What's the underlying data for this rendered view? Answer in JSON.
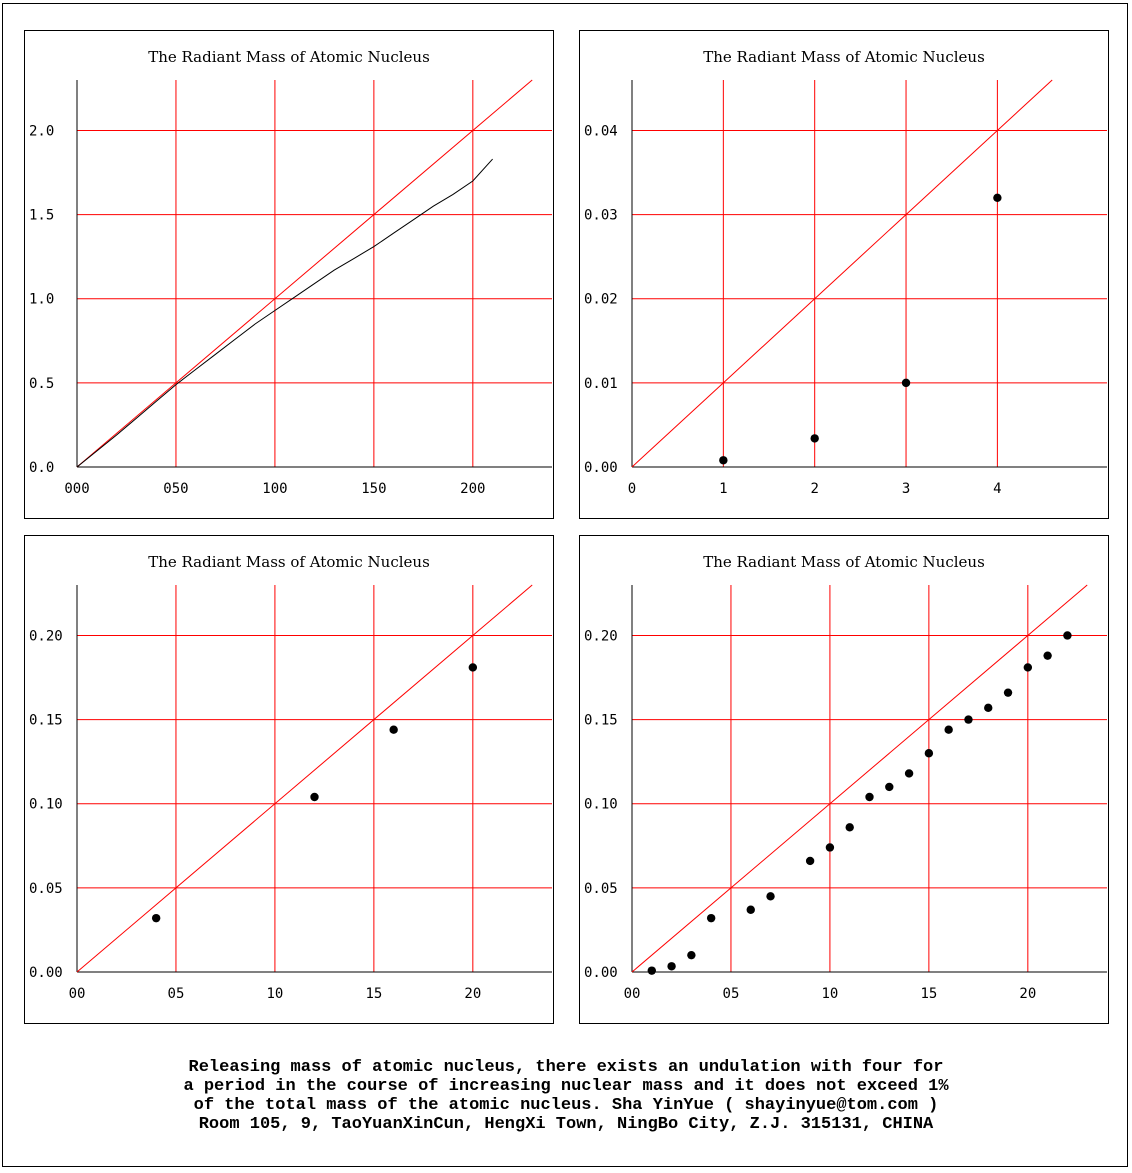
{
  "chart_data": [
    {
      "type": "scatter",
      "title": "The Radiant Mass of Atomic Nucleus",
      "xlim": [
        0,
        240
      ],
      "ylim": [
        0,
        2.3
      ],
      "xticks": [
        0,
        50,
        100,
        150,
        200
      ],
      "xtick_labels": [
        "000",
        "050",
        "100",
        "150",
        "200"
      ],
      "yticks": [
        0,
        0.5,
        1.0,
        1.5,
        2.0
      ],
      "ytick_labels": [
        "0.0",
        "0.5",
        "1.0",
        "1.5",
        "2.0"
      ],
      "grid": true,
      "reference_line": {
        "slope": 0.01
      },
      "series": [
        {
          "style": "curve",
          "x": [
            0,
            10,
            20,
            30,
            40,
            50,
            60,
            70,
            80,
            90,
            100,
            110,
            120,
            130,
            140,
            150,
            160,
            170,
            180,
            190,
            200,
            210
          ],
          "y": [
            0,
            0.095,
            0.19,
            0.29,
            0.39,
            0.49,
            0.58,
            0.67,
            0.76,
            0.85,
            0.93,
            1.01,
            1.09,
            1.17,
            1.24,
            1.31,
            1.39,
            1.47,
            1.55,
            1.62,
            1.7,
            1.83
          ]
        }
      ]
    },
    {
      "type": "scatter",
      "title": "The Radiant Mass of Atomic Nucleus",
      "xlim": [
        0,
        5.2
      ],
      "ylim": [
        0,
        0.046
      ],
      "xticks": [
        0,
        1,
        2,
        3,
        4
      ],
      "xtick_labels": [
        "0",
        "1",
        "2",
        "3",
        "4"
      ],
      "yticks": [
        0,
        0.01,
        0.02,
        0.03,
        0.04
      ],
      "ytick_labels": [
        "0.00",
        "0.01",
        "0.02",
        "0.03",
        "0.04"
      ],
      "grid": true,
      "reference_line": {
        "slope": 0.01
      },
      "series": [
        {
          "style": "points",
          "x": [
            1,
            2,
            3,
            4
          ],
          "y": [
            0.0008,
            0.0034,
            0.01,
            0.032
          ]
        }
      ]
    },
    {
      "type": "scatter",
      "title": "The Radiant Mass of Atomic Nucleus",
      "xlim": [
        0,
        24
      ],
      "ylim": [
        0,
        0.23
      ],
      "xticks": [
        0,
        5,
        10,
        15,
        20
      ],
      "xtick_labels": [
        "00",
        "05",
        "10",
        "15",
        "20"
      ],
      "yticks": [
        0,
        0.05,
        0.1,
        0.15,
        0.2
      ],
      "ytick_labels": [
        "0.00",
        "0.05",
        "0.10",
        "0.15",
        "0.20"
      ],
      "grid": true,
      "reference_line": {
        "slope": 0.01
      },
      "series": [
        {
          "style": "points",
          "x": [
            4,
            12,
            16,
            20
          ],
          "y": [
            0.032,
            0.104,
            0.144,
            0.181
          ]
        }
      ]
    },
    {
      "type": "scatter",
      "title": "The Radiant Mass of Atomic Nucleus",
      "xlim": [
        0,
        24
      ],
      "ylim": [
        0,
        0.23
      ],
      "xticks": [
        0,
        5,
        10,
        15,
        20
      ],
      "xtick_labels": [
        "00",
        "05",
        "10",
        "15",
        "20"
      ],
      "yticks": [
        0,
        0.05,
        0.1,
        0.15,
        0.2
      ],
      "ytick_labels": [
        "0.00",
        "0.05",
        "0.10",
        "0.15",
        "0.20"
      ],
      "grid": true,
      "reference_line": {
        "slope": 0.01
      },
      "series": [
        {
          "style": "points",
          "x": [
            1,
            2,
            3,
            4,
            6,
            7,
            9,
            10,
            11,
            12,
            13,
            14,
            15,
            16,
            17,
            18,
            19,
            20,
            21,
            22
          ],
          "y": [
            0.0008,
            0.0034,
            0.01,
            0.032,
            0.037,
            0.045,
            0.066,
            0.074,
            0.086,
            0.104,
            0.11,
            0.118,
            0.13,
            0.144,
            0.15,
            0.157,
            0.166,
            0.181,
            0.188,
            0.2
          ]
        }
      ]
    }
  ],
  "caption": {
    "line1": "Releasing mass of atomic nucleus, there exists an undulation with four for",
    "line2": "a period in the course of increasing nuclear mass and it does not exceed 1%",
    "line3": "of the total mass of the atomic nucleus. Sha YinYue ( shayinyue@tom.com )",
    "line4": "Room 105, 9, TaoYuanXinCun, HengXi Town, NingBo City, Z.J. 315131, CHINA"
  },
  "colors": {
    "grid": "#ff0000",
    "reference": "#ff0000",
    "data": "#000000",
    "border": "#000000"
  }
}
